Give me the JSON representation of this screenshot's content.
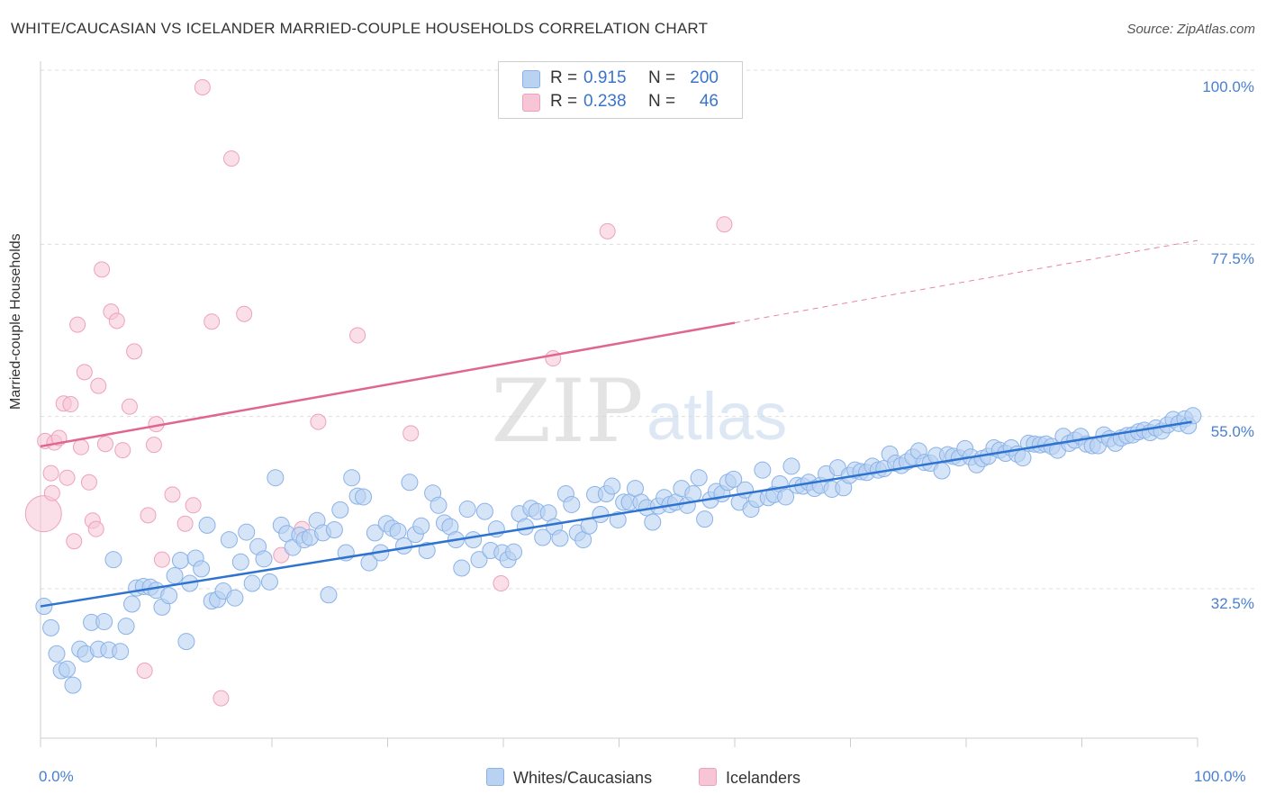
{
  "title": "WHITE/CAUCASIAN VS ICELANDER MARRIED-COUPLE HOUSEHOLDS CORRELATION CHART",
  "source": "Source: ZipAtlas.com",
  "watermark": {
    "zip": "ZIP",
    "atlas": "atlas"
  },
  "colors": {
    "blue_fill": "#b9d2f2",
    "blue_stroke": "#8ab2e8",
    "blue_line": "#2f73d0",
    "pink_fill": "#f7c5d5",
    "pink_stroke": "#eda2bb",
    "pink_line": "#e0668f",
    "tick_text": "#4a7fd0",
    "grid": "#dddddd"
  },
  "legend": {
    "rows": [
      {
        "r_label": "R = ",
        "r_value": "0.915",
        "n_label": "N = ",
        "n_value": "200",
        "color": "#b9d2f2",
        "border": "#8ab2e8"
      },
      {
        "r_label": "R = ",
        "r_value": "0.238",
        "n_label": "N = ",
        "n_value": "46",
        "color": "#f7c5d5",
        "border": "#eda2bb"
      }
    ]
  },
  "bottom_legend": [
    {
      "label": "Whites/Caucasians",
      "color": "#b9d2f2",
      "border": "#8ab2e8"
    },
    {
      "label": "Icelanders",
      "color": "#f7c5d5",
      "border": "#eda2bb"
    }
  ],
  "chart_data": {
    "type": "scatter",
    "title": "WHITE/CAUCASIAN VS ICELANDER MARRIED-COUPLE HOUSEHOLDS CORRELATION CHART",
    "xlabel": "",
    "ylabel": "Married-couple Households",
    "xlim": [
      0,
      100
    ],
    "ylim": [
      11.5,
      102
    ],
    "x_tick_labels": [
      "0.0%",
      "100.0%"
    ],
    "y_ticks": [
      100.0,
      77.5,
      55.0,
      32.5
    ],
    "y_tick_labels": [
      "100.0%",
      "77.5%",
      "55.0%",
      "32.5%"
    ],
    "grid": true,
    "legend_position": "top-center",
    "series": [
      {
        "name": "Whites/Caucasians",
        "color": "#b9d2f2",
        "trend": {
          "x0": 0,
          "y0": 32.2,
          "x1": 99.5,
          "y1": 56.3,
          "solid_to": 99.5
        },
        "points": [
          [
            0.3,
            32.2
          ],
          [
            0.9,
            29.4
          ],
          [
            1.4,
            26.0
          ],
          [
            1.8,
            23.8
          ],
          [
            2.3,
            24.0
          ],
          [
            2.8,
            21.9
          ],
          [
            3.4,
            26.6
          ],
          [
            3.9,
            26.0
          ],
          [
            4.4,
            30.1
          ],
          [
            5.0,
            26.6
          ],
          [
            5.5,
            30.2
          ],
          [
            5.9,
            26.5
          ],
          [
            6.3,
            38.3
          ],
          [
            6.9,
            26.3
          ],
          [
            7.4,
            29.6
          ],
          [
            7.9,
            32.5
          ],
          [
            8.3,
            34.6
          ],
          [
            8.9,
            34.8
          ],
          [
            9.5,
            34.7
          ],
          [
            10.0,
            34.3
          ],
          [
            10.5,
            32.1
          ],
          [
            11.1,
            33.6
          ],
          [
            11.6,
            36.2
          ],
          [
            12.1,
            38.2
          ],
          [
            12.6,
            27.6
          ],
          [
            12.9,
            35.2
          ],
          [
            13.4,
            38.5
          ],
          [
            13.9,
            37.1
          ],
          [
            14.4,
            42.8
          ],
          [
            14.8,
            32.9
          ],
          [
            15.3,
            33.1
          ],
          [
            15.8,
            34.2
          ],
          [
            16.3,
            40.9
          ],
          [
            16.8,
            33.3
          ],
          [
            17.3,
            38.0
          ],
          [
            17.8,
            41.9
          ],
          [
            18.3,
            35.2
          ],
          [
            18.8,
            40.0
          ],
          [
            19.3,
            38.4
          ],
          [
            19.8,
            35.4
          ],
          [
            20.3,
            49.0
          ],
          [
            20.8,
            42.8
          ],
          [
            21.3,
            41.7
          ],
          [
            21.8,
            39.9
          ],
          [
            22.4,
            41.5
          ],
          [
            22.8,
            40.9
          ],
          [
            23.3,
            41.2
          ],
          [
            23.9,
            43.4
          ],
          [
            24.4,
            41.8
          ],
          [
            24.9,
            33.7
          ],
          [
            25.4,
            42.2
          ],
          [
            25.9,
            44.8
          ],
          [
            26.4,
            39.2
          ],
          [
            26.9,
            49.0
          ],
          [
            27.4,
            46.6
          ],
          [
            27.9,
            46.5
          ],
          [
            28.4,
            37.9
          ],
          [
            28.9,
            41.8
          ],
          [
            29.4,
            39.2
          ],
          [
            29.9,
            43.0
          ],
          [
            30.4,
            42.4
          ],
          [
            30.9,
            42.0
          ],
          [
            31.4,
            40.1
          ],
          [
            31.9,
            48.4
          ],
          [
            32.4,
            41.6
          ],
          [
            32.9,
            42.7
          ],
          [
            33.4,
            39.5
          ],
          [
            33.9,
            47.0
          ],
          [
            34.4,
            45.4
          ],
          [
            34.9,
            43.1
          ],
          [
            35.4,
            42.6
          ],
          [
            35.9,
            40.9
          ],
          [
            36.4,
            37.2
          ],
          [
            36.9,
            44.9
          ],
          [
            37.4,
            40.9
          ],
          [
            37.9,
            38.3
          ],
          [
            38.4,
            44.6
          ],
          [
            38.9,
            39.5
          ],
          [
            39.4,
            42.3
          ],
          [
            39.9,
            39.2
          ],
          [
            40.4,
            38.3
          ],
          [
            40.9,
            39.3
          ],
          [
            41.4,
            44.3
          ],
          [
            41.9,
            42.6
          ],
          [
            42.4,
            45.0
          ],
          [
            42.9,
            44.6
          ],
          [
            43.4,
            41.2
          ],
          [
            43.9,
            44.4
          ],
          [
            44.4,
            42.6
          ],
          [
            44.9,
            41.1
          ],
          [
            45.4,
            46.9
          ],
          [
            45.9,
            45.5
          ],
          [
            46.4,
            41.8
          ],
          [
            46.9,
            40.9
          ],
          [
            47.4,
            42.7
          ],
          [
            47.9,
            46.8
          ],
          [
            48.4,
            44.2
          ],
          [
            48.9,
            46.9
          ],
          [
            49.4,
            47.9
          ],
          [
            49.9,
            43.5
          ],
          [
            50.4,
            45.8
          ],
          [
            50.9,
            45.8
          ],
          [
            51.4,
            47.6
          ],
          [
            51.9,
            45.8
          ],
          [
            52.4,
            45.1
          ],
          [
            52.9,
            43.2
          ],
          [
            53.4,
            45.3
          ],
          [
            53.9,
            46.4
          ],
          [
            54.4,
            45.5
          ],
          [
            54.9,
            45.8
          ],
          [
            55.4,
            47.6
          ],
          [
            55.9,
            45.4
          ],
          [
            56.4,
            46.9
          ],
          [
            56.9,
            49.0
          ],
          [
            57.4,
            43.6
          ],
          [
            57.9,
            46.1
          ],
          [
            58.4,
            47.2
          ],
          [
            58.9,
            46.9
          ],
          [
            59.4,
            48.4
          ],
          [
            59.9,
            48.8
          ],
          [
            60.4,
            45.8
          ],
          [
            60.9,
            47.4
          ],
          [
            61.4,
            44.9
          ],
          [
            61.9,
            46.2
          ],
          [
            62.4,
            50.0
          ],
          [
            62.9,
            46.4
          ],
          [
            63.4,
            46.8
          ],
          [
            63.9,
            48.2
          ],
          [
            64.4,
            46.5
          ],
          [
            64.9,
            50.5
          ],
          [
            65.4,
            48.0
          ],
          [
            65.9,
            47.9
          ],
          [
            66.4,
            48.4
          ],
          [
            66.9,
            47.6
          ],
          [
            67.4,
            48.0
          ],
          [
            67.9,
            49.5
          ],
          [
            68.4,
            47.5
          ],
          [
            68.9,
            50.3
          ],
          [
            69.4,
            47.7
          ],
          [
            69.9,
            49.3
          ],
          [
            70.4,
            50.0
          ],
          [
            70.9,
            49.8
          ],
          [
            71.4,
            49.7
          ],
          [
            71.9,
            50.5
          ],
          [
            72.4,
            50.0
          ],
          [
            72.9,
            50.2
          ],
          [
            73.4,
            52.1
          ],
          [
            73.9,
            50.9
          ],
          [
            74.4,
            50.6
          ],
          [
            74.9,
            51.1
          ],
          [
            75.4,
            51.7
          ],
          [
            75.9,
            52.5
          ],
          [
            76.4,
            51.0
          ],
          [
            76.9,
            50.9
          ],
          [
            77.4,
            51.9
          ],
          [
            77.9,
            49.9
          ],
          [
            78.4,
            52.0
          ],
          [
            78.9,
            51.8
          ],
          [
            79.4,
            51.6
          ],
          [
            79.9,
            52.8
          ],
          [
            80.4,
            51.7
          ],
          [
            80.9,
            50.7
          ],
          [
            81.4,
            51.5
          ],
          [
            81.9,
            51.8
          ],
          [
            82.4,
            52.9
          ],
          [
            82.9,
            52.6
          ],
          [
            83.4,
            52.2
          ],
          [
            83.9,
            52.9
          ],
          [
            84.4,
            52.1
          ],
          [
            84.9,
            51.6
          ],
          [
            85.4,
            53.5
          ],
          [
            85.9,
            53.4
          ],
          [
            86.4,
            53.3
          ],
          [
            86.9,
            53.4
          ],
          [
            87.4,
            53.1
          ],
          [
            87.9,
            52.6
          ],
          [
            88.4,
            54.4
          ],
          [
            88.9,
            53.5
          ],
          [
            89.4,
            53.9
          ],
          [
            89.9,
            54.4
          ],
          [
            90.4,
            53.4
          ],
          [
            90.9,
            53.2
          ],
          [
            91.4,
            53.2
          ],
          [
            91.9,
            54.6
          ],
          [
            92.4,
            54.1
          ],
          [
            92.9,
            53.5
          ],
          [
            93.4,
            54.2
          ],
          [
            93.9,
            54.5
          ],
          [
            94.4,
            54.6
          ],
          [
            94.9,
            55.0
          ],
          [
            95.4,
            55.2
          ],
          [
            95.9,
            54.9
          ],
          [
            96.4,
            55.5
          ],
          [
            96.9,
            55.1
          ],
          [
            97.4,
            55.9
          ],
          [
            97.9,
            56.6
          ],
          [
            98.4,
            56.1
          ],
          [
            98.9,
            56.7
          ],
          [
            99.2,
            55.8
          ],
          [
            99.6,
            57.1
          ]
        ]
      },
      {
        "name": "Icelanders",
        "color": "#f7c5d5",
        "trend": {
          "x0": 0,
          "y0": 53.1,
          "x1": 100,
          "y1": 80.0,
          "solid_to": 60
        },
        "points": [
          [
            0.1,
            44.3
          ],
          [
            0.4,
            53.8
          ],
          [
            0.9,
            49.6
          ],
          [
            1.2,
            53.6
          ],
          [
            1.6,
            54.2
          ],
          [
            2.0,
            58.7
          ],
          [
            2.3,
            49.0
          ],
          [
            2.6,
            58.6
          ],
          [
            3.2,
            69.0
          ],
          [
            3.5,
            53.0
          ],
          [
            3.8,
            62.8
          ],
          [
            4.2,
            48.4
          ],
          [
            4.5,
            43.4
          ],
          [
            4.8,
            42.3
          ],
          [
            5.3,
            76.2
          ],
          [
            5.6,
            53.4
          ],
          [
            6.1,
            70.7
          ],
          [
            6.6,
            69.5
          ],
          [
            7.1,
            52.6
          ],
          [
            7.7,
            58.3
          ],
          [
            8.1,
            65.5
          ],
          [
            9.0,
            23.8
          ],
          [
            9.3,
            44.1
          ],
          [
            9.8,
            53.3
          ],
          [
            10.5,
            38.3
          ],
          [
            11.4,
            46.8
          ],
          [
            12.5,
            43.0
          ],
          [
            13.2,
            45.4
          ],
          [
            14.0,
            100.0
          ],
          [
            14.8,
            69.4
          ],
          [
            15.6,
            20.2
          ],
          [
            16.5,
            90.7
          ],
          [
            17.6,
            70.4
          ],
          [
            20.8,
            38.9
          ],
          [
            22.6,
            42.3
          ],
          [
            24.0,
            56.3
          ],
          [
            27.4,
            67.6
          ],
          [
            39.8,
            35.2
          ],
          [
            44.3,
            64.6
          ],
          [
            49.0,
            81.2
          ],
          [
            59.1,
            82.1
          ],
          [
            32.0,
            54.8
          ],
          [
            1.0,
            47.0
          ],
          [
            5.0,
            61.0
          ],
          [
            10.0,
            56.0
          ],
          [
            2.9,
            40.7
          ]
        ]
      }
    ]
  }
}
